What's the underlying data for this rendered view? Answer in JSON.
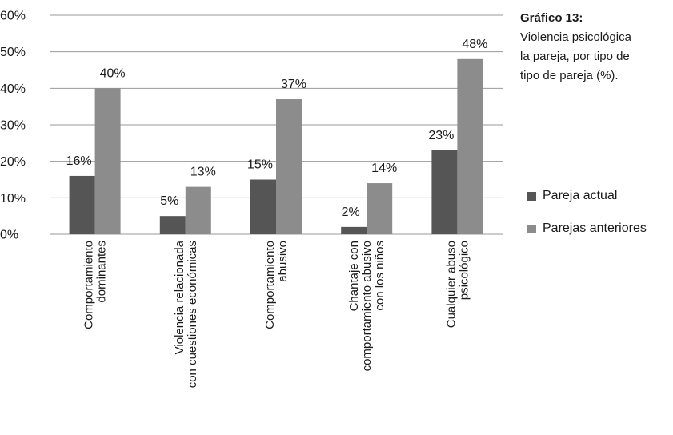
{
  "colors": {
    "series_actual": "#555555",
    "series_anteriores": "#8c8c8c",
    "grid": "#9a9a9a",
    "text": "#1a1a1a"
  },
  "side_title": {
    "heading": "Gráfico 13:",
    "lines": [
      "Violencia psicológica",
      "la pareja, por tipo de",
      "tipo de pareja (%)."
    ]
  },
  "legend": {
    "items": [
      {
        "label": "Pareja actual",
        "color": "#555555"
      },
      {
        "label": "Parejas anteriores",
        "color": "#8c8c8c"
      }
    ]
  },
  "chart_data": {
    "type": "bar",
    "categories": [
      [
        "Comportamiento",
        "dominantes"
      ],
      [
        "Violencia relacionada",
        "con cuestiones económicas"
      ],
      [
        "Comportamiento",
        "abusivo"
      ],
      [
        "Chantaje con",
        "comportamiento abusivo",
        "con los niños"
      ],
      [
        "Cualquier abuso",
        "psicológico"
      ]
    ],
    "series": [
      {
        "name": "Pareja actual",
        "values": [
          16,
          5,
          15,
          2,
          23
        ],
        "labels": [
          "16%",
          "5%",
          "15%",
          "2%",
          "23%"
        ]
      },
      {
        "name": "Parejas anteriores",
        "values": [
          40,
          13,
          37,
          14,
          48
        ],
        "labels": [
          "40%",
          "13%",
          "37%",
          "14%",
          "48%"
        ]
      }
    ],
    "yticks": [
      "0%",
      "10%",
      "20%",
      "30%",
      "40%",
      "50%",
      "60%"
    ],
    "ylim": [
      0,
      60
    ],
    "grid": true,
    "legend_position": "right"
  }
}
